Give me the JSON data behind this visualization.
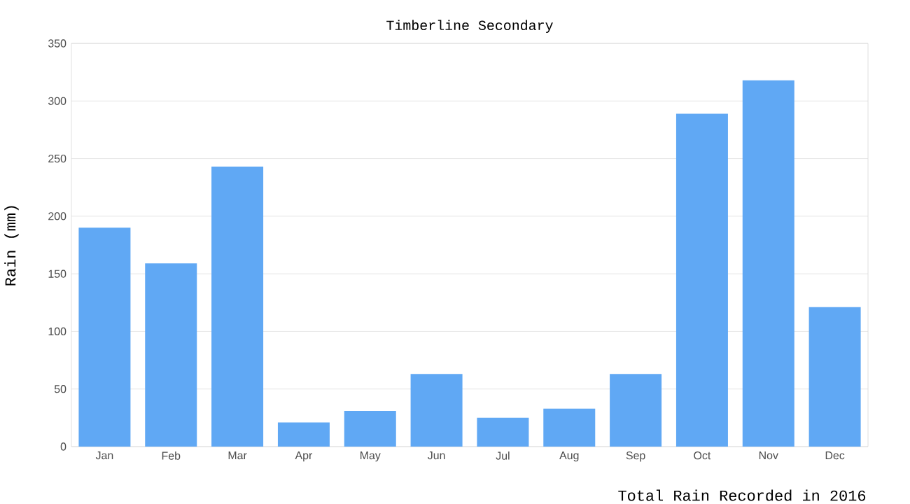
{
  "chart_data": {
    "type": "bar",
    "title": "Timberline Secondary",
    "xlabel": "Total Rain Recorded in 2016",
    "ylabel": "Rain (mm)",
    "categories": [
      "Jan",
      "Feb",
      "Mar",
      "Apr",
      "May",
      "Jun",
      "Jul",
      "Aug",
      "Sep",
      "Oct",
      "Nov",
      "Dec"
    ],
    "values": [
      190,
      159,
      243,
      21,
      31,
      63,
      25,
      33,
      63,
      289,
      318,
      121
    ],
    "color": "#60a8f4",
    "ylim": [
      0,
      350
    ],
    "yticks": [
      0,
      50,
      100,
      150,
      200,
      250,
      300,
      350
    ],
    "grid": "y"
  }
}
